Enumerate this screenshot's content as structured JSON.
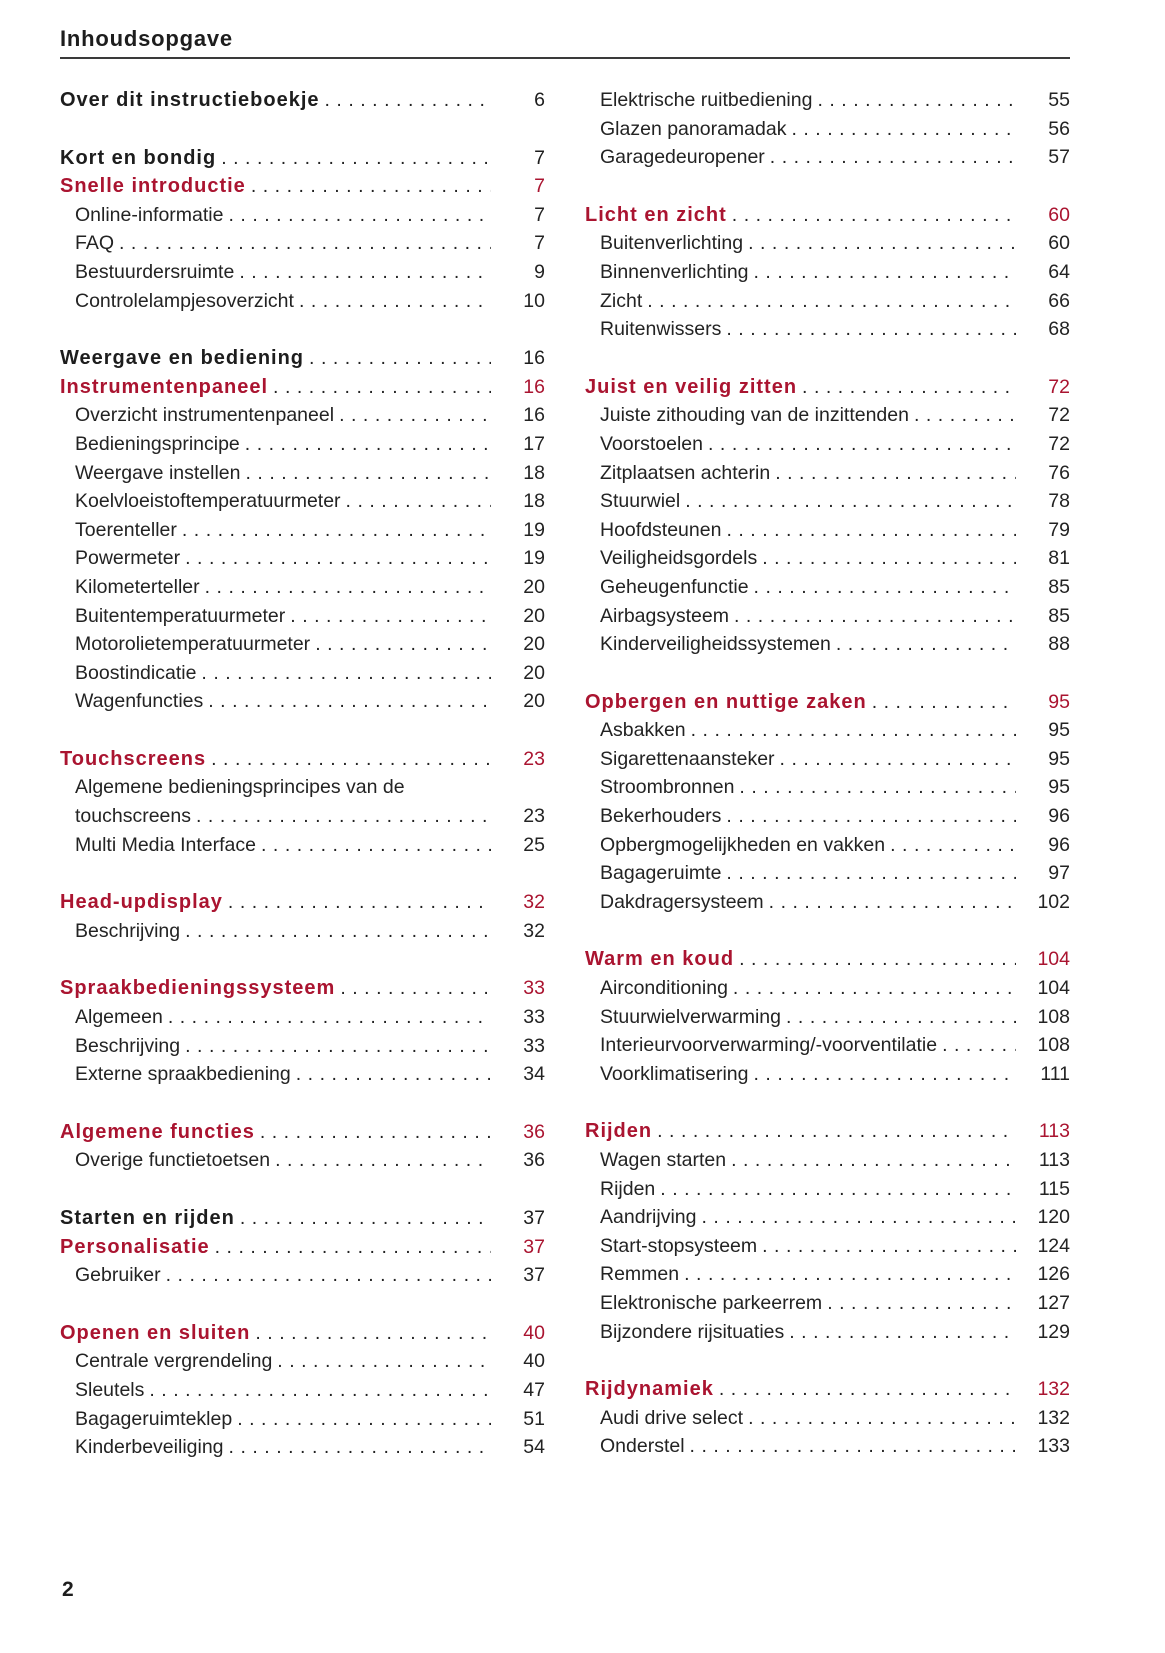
{
  "page": {
    "header": {
      "title": "Inhoudsopgave"
    },
    "footer": {
      "page_number": "2"
    }
  },
  "colors": {
    "accent_red": "#aa1430",
    "text": "#232323",
    "background": "#ffffff"
  },
  "toc": {
    "columns": [
      {
        "side": "left",
        "sections": [
          {
            "entries": [
              {
                "style": "part",
                "label": "Over dit instructieboekje",
                "page": "6"
              }
            ]
          },
          {
            "entries": [
              {
                "style": "part",
                "label": "Kort en bondig",
                "page": "7"
              },
              {
                "style": "chapter",
                "label": "Snelle introductie",
                "page": "7"
              },
              {
                "style": "sub",
                "label": "Online-informatie",
                "page": "7"
              },
              {
                "style": "sub",
                "label": "FAQ",
                "page": "7"
              },
              {
                "style": "sub",
                "label": "Bestuurdersruimte",
                "page": "9"
              },
              {
                "style": "sub",
                "label": "Controlelampjesoverzicht",
                "page": "10"
              }
            ]
          },
          {
            "entries": [
              {
                "style": "part",
                "label": "Weergave en bediening",
                "page": "16"
              },
              {
                "style": "chapter",
                "label": "Instrumentenpaneel",
                "page": "16"
              },
              {
                "style": "sub",
                "label": "Overzicht instrumentenpaneel",
                "page": "16"
              },
              {
                "style": "sub",
                "label": "Bedieningsprincipe",
                "page": "17"
              },
              {
                "style": "sub",
                "label": "Weergave instellen",
                "page": "18"
              },
              {
                "style": "sub",
                "label": "Koelvloeistoftemperatuurmeter",
                "page": "18"
              },
              {
                "style": "sub",
                "label": "Toerenteller",
                "page": "19"
              },
              {
                "style": "sub",
                "label": "Powermeter",
                "page": "19"
              },
              {
                "style": "sub",
                "label": "Kilometerteller",
                "page": "20"
              },
              {
                "style": "sub",
                "label": "Buitentemperatuurmeter",
                "page": "20"
              },
              {
                "style": "sub",
                "label": "Motorolietemperatuurmeter",
                "page": "20"
              },
              {
                "style": "sub",
                "label": "Boostindicatie",
                "page": "20"
              },
              {
                "style": "sub",
                "label": "Wagenfuncties",
                "page": "20"
              }
            ]
          },
          {
            "entries": [
              {
                "style": "chapter",
                "label": "Touchscreens",
                "page": "23"
              },
              {
                "style": "sub",
                "pre": "Algemene bedieningsprincipes van de",
                "label": "touchscreens",
                "page": "23"
              },
              {
                "style": "sub",
                "label": "Multi Media Interface",
                "page": "25"
              }
            ]
          },
          {
            "entries": [
              {
                "style": "chapter",
                "label": "Head-updisplay",
                "page": "32"
              },
              {
                "style": "sub",
                "label": "Beschrijving",
                "page": "32"
              }
            ]
          },
          {
            "entries": [
              {
                "style": "chapter",
                "label": "Spraakbedieningssysteem",
                "page": "33"
              },
              {
                "style": "sub",
                "label": "Algemeen",
                "page": "33"
              },
              {
                "style": "sub",
                "label": "Beschrijving",
                "page": "33"
              },
              {
                "style": "sub",
                "label": "Externe spraakbediening",
                "page": "34"
              }
            ]
          },
          {
            "entries": [
              {
                "style": "chapter",
                "label": "Algemene functies",
                "page": "36"
              },
              {
                "style": "sub",
                "label": "Overige functietoetsen",
                "page": "36"
              }
            ]
          },
          {
            "entries": [
              {
                "style": "part",
                "label": "Starten en rijden",
                "page": "37"
              },
              {
                "style": "chapter",
                "label": "Personalisatie",
                "page": "37"
              },
              {
                "style": "sub",
                "label": "Gebruiker",
                "page": "37"
              }
            ]
          },
          {
            "entries": [
              {
                "style": "chapter",
                "label": "Openen en sluiten",
                "page": "40"
              },
              {
                "style": "sub",
                "label": "Centrale vergrendeling",
                "page": "40"
              },
              {
                "style": "sub",
                "label": "Sleutels",
                "page": "47"
              },
              {
                "style": "sub",
                "label": "Bagageruimteklep",
                "page": "51"
              },
              {
                "style": "sub",
                "label": "Kinderbeveiliging",
                "page": "54"
              }
            ]
          }
        ]
      },
      {
        "side": "right",
        "sections": [
          {
            "entries": [
              {
                "style": "sub",
                "label": "Elektrische ruitbediening",
                "page": "55"
              },
              {
                "style": "sub",
                "label": "Glazen panoramadak",
                "page": "56"
              },
              {
                "style": "sub",
                "label": "Garagedeuropener",
                "page": "57"
              }
            ]
          },
          {
            "entries": [
              {
                "style": "chapter",
                "label": "Licht en zicht",
                "page": "60"
              },
              {
                "style": "sub",
                "label": "Buitenverlichting",
                "page": "60"
              },
              {
                "style": "sub",
                "label": "Binnenverlichting",
                "page": "64"
              },
              {
                "style": "sub",
                "label": "Zicht",
                "page": "66"
              },
              {
                "style": "sub",
                "label": "Ruitenwissers",
                "page": "68"
              }
            ]
          },
          {
            "entries": [
              {
                "style": "chapter",
                "label": "Juist en veilig zitten",
                "page": "72"
              },
              {
                "style": "sub",
                "label": "Juiste zithouding van de inzittenden",
                "page": "72"
              },
              {
                "style": "sub",
                "label": "Voorstoelen",
                "page": "72"
              },
              {
                "style": "sub",
                "label": "Zitplaatsen achterin",
                "page": "76"
              },
              {
                "style": "sub",
                "label": "Stuurwiel",
                "page": "78"
              },
              {
                "style": "sub",
                "label": "Hoofdsteunen",
                "page": "79"
              },
              {
                "style": "sub",
                "label": "Veiligheidsgordels",
                "page": "81"
              },
              {
                "style": "sub",
                "label": "Geheugenfunctie",
                "page": "85"
              },
              {
                "style": "sub",
                "label": "Airbagsysteem",
                "page": "85"
              },
              {
                "style": "sub",
                "label": "Kinderveiligheidssystemen",
                "page": "88"
              }
            ]
          },
          {
            "entries": [
              {
                "style": "chapter",
                "label": "Opbergen en nuttige zaken",
                "page": "95"
              },
              {
                "style": "sub",
                "label": "Asbakken",
                "page": "95"
              },
              {
                "style": "sub",
                "label": "Sigarettenaansteker",
                "page": "95"
              },
              {
                "style": "sub",
                "label": "Stroombronnen",
                "page": "95"
              },
              {
                "style": "sub",
                "label": "Bekerhouders",
                "page": "96"
              },
              {
                "style": "sub",
                "label": "Opbergmogelijkheden en vakken",
                "page": "96"
              },
              {
                "style": "sub",
                "label": "Bagageruimte",
                "page": "97"
              },
              {
                "style": "sub",
                "label": "Dakdragersysteem",
                "page": "102"
              }
            ]
          },
          {
            "entries": [
              {
                "style": "chapter",
                "label": "Warm en koud",
                "page": "104"
              },
              {
                "style": "sub",
                "label": "Airconditioning",
                "page": "104"
              },
              {
                "style": "sub",
                "label": "Stuurwielverwarming",
                "page": "108"
              },
              {
                "style": "sub",
                "label": "Interieurvoorverwarming/-voorventilatie",
                "page": "108"
              },
              {
                "style": "sub",
                "label": "Voorklimatisering",
                "page": "111"
              }
            ]
          },
          {
            "entries": [
              {
                "style": "chapter",
                "label": "Rijden",
                "page": "113"
              },
              {
                "style": "sub",
                "label": "Wagen starten",
                "page": "113"
              },
              {
                "style": "sub",
                "label": "Rijden",
                "page": "115"
              },
              {
                "style": "sub",
                "label": "Aandrijving",
                "page": "120"
              },
              {
                "style": "sub",
                "label": "Start-stopsysteem",
                "page": "124"
              },
              {
                "style": "sub",
                "label": "Remmen",
                "page": "126"
              },
              {
                "style": "sub",
                "label": "Elektronische parkeerrem",
                "page": "127"
              },
              {
                "style": "sub",
                "label": "Bijzondere rijsituaties",
                "page": "129"
              }
            ]
          },
          {
            "entries": [
              {
                "style": "chapter",
                "label": "Rijdynamiek",
                "page": "132"
              },
              {
                "style": "sub",
                "label": "Audi drive select",
                "page": "132"
              },
              {
                "style": "sub",
                "label": "Onderstel",
                "page": "133"
              }
            ]
          }
        ]
      }
    ]
  }
}
